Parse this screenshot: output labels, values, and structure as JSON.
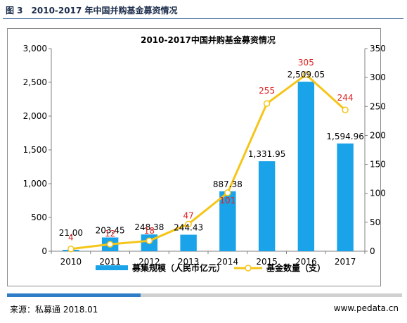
{
  "figure": {
    "label": "图 3",
    "title": "2010-2017 年中国并购基金募资情况"
  },
  "footer": {
    "source": "来源：私募通 2018.01",
    "site": "www.pedata.cn"
  },
  "chart_data": {
    "type": "bar+line",
    "title": "2010-2017中国并购基金募资情况",
    "categories": [
      "2010",
      "2011",
      "2012",
      "2013",
      "2014",
      "2015",
      "2016",
      "2017"
    ],
    "series": [
      {
        "name": "募集规模（人民币亿元）",
        "type": "bar",
        "axis": "left",
        "color": "#1aa3e8",
        "values": [
          21.0,
          203.45,
          248.38,
          244.43,
          887.38,
          1331.95,
          2509.05,
          1594.96
        ],
        "labels": [
          "21.00",
          "203.45",
          "248.38",
          "244.43",
          "887.38",
          "1,331.95",
          "2,509.05",
          "1,594.96"
        ]
      },
      {
        "name": "基金数量（支）",
        "type": "line",
        "axis": "right",
        "color": "#f5c518",
        "label_color": "#e02020",
        "values": [
          4,
          12,
          18,
          47,
          101,
          255,
          305,
          244
        ],
        "labels": [
          "4",
          "12",
          "18",
          "47",
          "101",
          "255",
          "305",
          "244"
        ]
      }
    ],
    "y_left": {
      "lim": [
        0,
        3000
      ],
      "ticks": [
        "0",
        "500",
        "1,000",
        "1,500",
        "2,000",
        "2,500",
        "3,000"
      ],
      "tick_values": [
        0,
        500,
        1000,
        1500,
        2000,
        2500,
        3000
      ]
    },
    "y_right": {
      "lim": [
        0,
        350
      ],
      "ticks": [
        "0",
        "50",
        "100",
        "150",
        "200",
        "250",
        "300",
        "350"
      ],
      "tick_values": [
        0,
        50,
        100,
        150,
        200,
        250,
        300,
        350
      ]
    },
    "grid": false,
    "legend": "bottom"
  }
}
